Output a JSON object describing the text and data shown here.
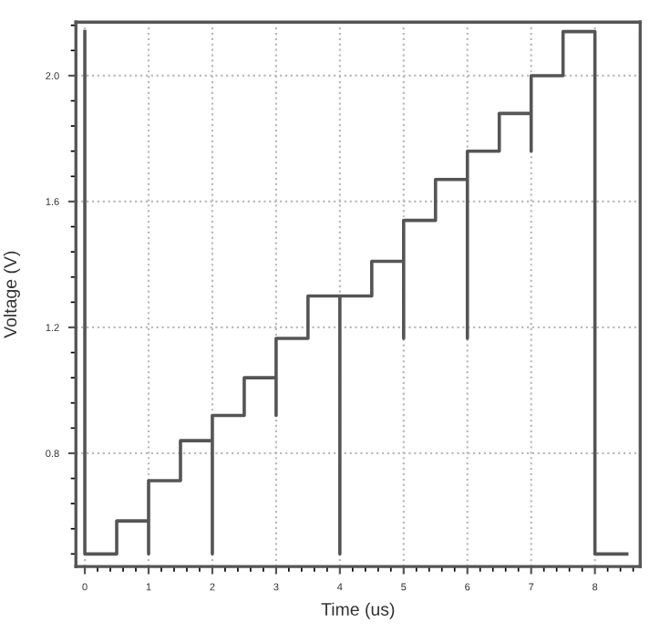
{
  "chart_data": {
    "type": "line",
    "xlabel": "Time (us)",
    "ylabel": "Voltage (V)",
    "x": [
      0,
      0,
      0.5,
      0.5,
      1,
      1,
      1,
      1.5,
      1.5,
      2,
      2,
      2,
      2.5,
      2.5,
      3,
      3,
      3,
      3.5,
      3.5,
      4,
      4,
      4,
      4.5,
      4.5,
      5,
      5,
      5,
      5.5,
      5.5,
      6,
      6,
      6,
      6.5,
      6.5,
      7,
      7,
      7,
      7.5,
      7.5,
      8,
      8,
      8.5
    ],
    "series": [
      {
        "color": "#555555",
        "values": [
          2.14,
          0.48,
          0.48,
          0.585,
          0.585,
          0.48,
          0.713,
          0.713,
          0.84,
          0.84,
          0.48,
          0.92,
          0.92,
          1.04,
          1.04,
          0.92,
          1.165,
          1.165,
          1.3,
          1.3,
          0.48,
          1.3,
          1.3,
          1.41,
          1.41,
          1.165,
          1.54,
          1.54,
          1.67,
          1.67,
          1.165,
          1.76,
          1.76,
          1.88,
          1.88,
          1.76,
          2.0,
          2.0,
          2.14,
          2.14,
          0.48,
          0.48
        ]
      }
    ],
    "xlim": [
      -0.14,
      8.71
    ],
    "ylim": [
      0.44,
      2.17
    ],
    "xticks": [
      0,
      1,
      2,
      3,
      4,
      5,
      6,
      7,
      8
    ],
    "yticks": [
      0.8,
      1.2,
      1.6,
      {
        "value": 2,
        "label": "2.0"
      }
    ],
    "grid": true,
    "line_style": "solid",
    "marker": "none"
  }
}
